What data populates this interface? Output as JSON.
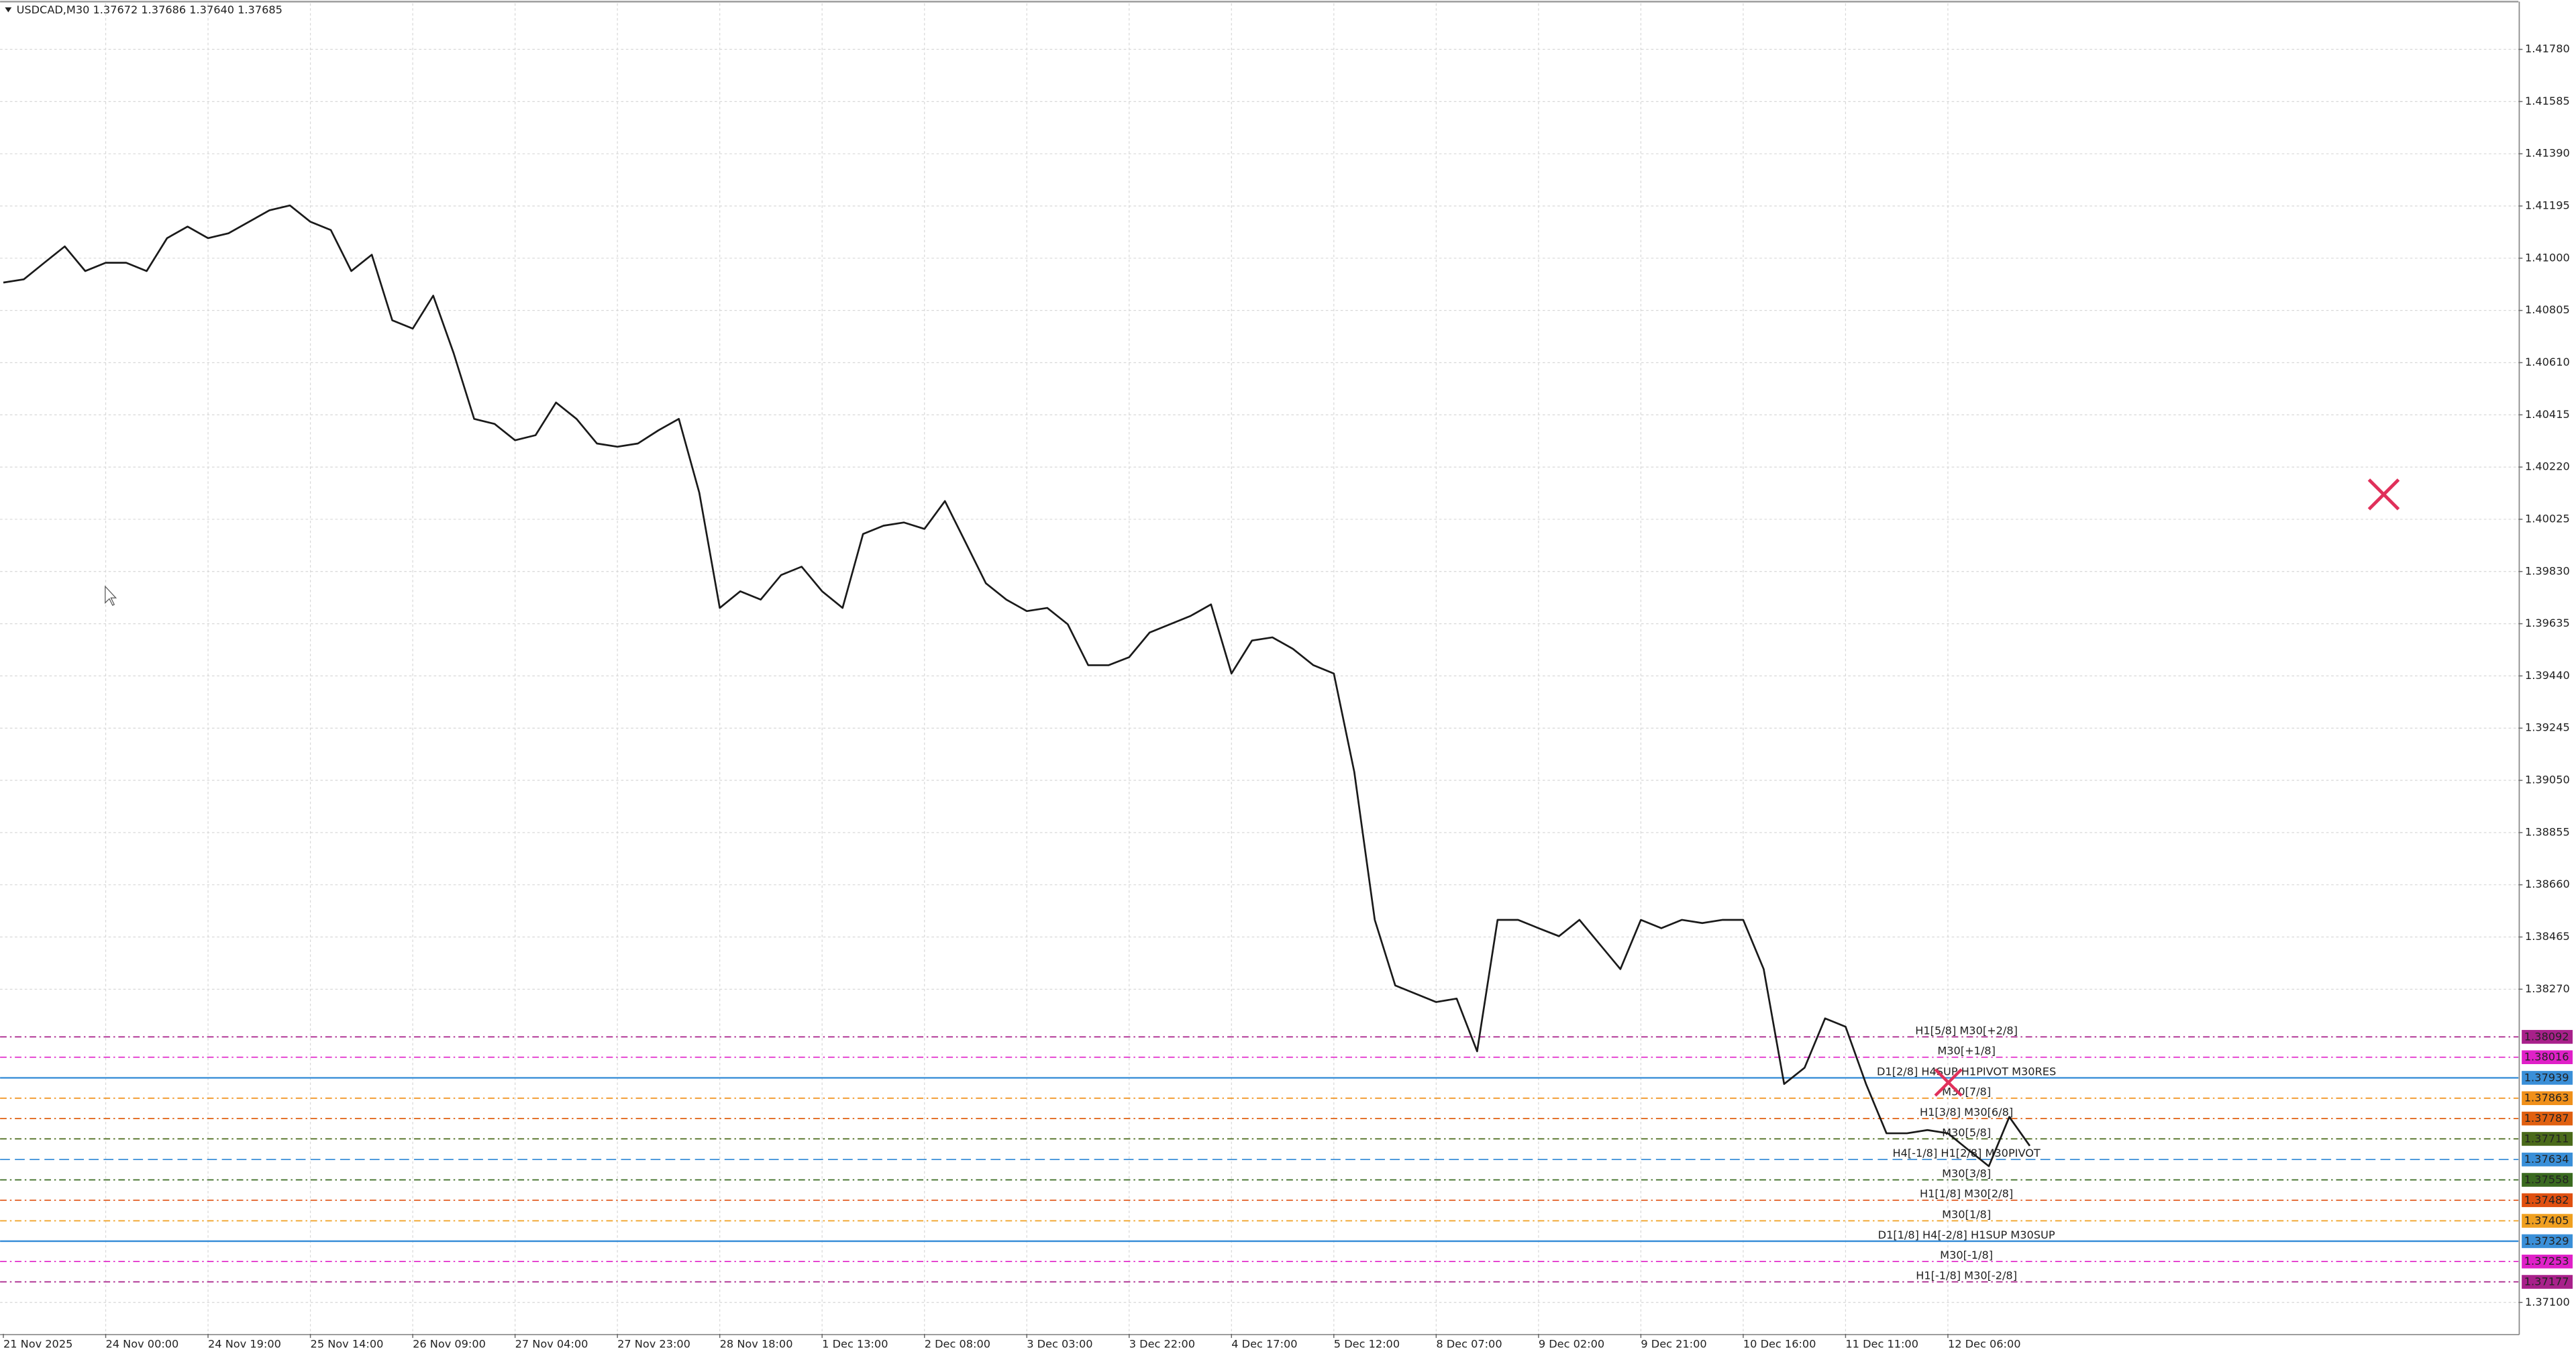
{
  "chart_data": {
    "type": "line",
    "title": "USDCAD,M30  1.37672 1.37686 1.37640 1.37685",
    "color": "#1a1a1a",
    "grid": true,
    "categories": [
      "21 Nov 2025",
      null,
      null,
      null,
      null,
      "24 Nov 00:00",
      null,
      null,
      null,
      null,
      "24 Nov 19:00",
      null,
      null,
      null,
      null,
      "25 Nov 14:00",
      null,
      null,
      null,
      null,
      "26 Nov 09:00",
      null,
      null,
      null,
      null,
      "27 Nov 04:00",
      null,
      null,
      null,
      null,
      "27 Nov 23:00",
      null,
      null,
      null,
      null,
      "28 Nov 18:00",
      null,
      null,
      null,
      null,
      "1 Dec 13:00",
      null,
      null,
      null,
      null,
      "2 Dec 08:00",
      null,
      null,
      null,
      null,
      "3 Dec 03:00",
      null,
      null,
      null,
      null,
      "3 Dec 22:00",
      null,
      null,
      null,
      null,
      "4 Dec 17:00",
      null,
      null,
      null,
      null,
      "5 Dec 12:00",
      null,
      null,
      null,
      null,
      "8 Dec 07:00",
      null,
      null,
      null,
      null,
      "9 Dec 02:00",
      null,
      null,
      null,
      null,
      "9 Dec 21:00",
      null,
      null,
      null,
      null,
      "10 Dec 16:00",
      null,
      null,
      null,
      null,
      "11 Dec 11:00",
      null,
      null,
      null,
      null,
      "12 Dec 06:00",
      null,
      null,
      null,
      null
    ],
    "values": [
      1.40909,
      1.40921,
      1.40983,
      1.41044,
      1.40952,
      1.40983,
      1.40983,
      1.40952,
      1.41075,
      1.41118,
      1.41075,
      1.41093,
      1.41136,
      1.41179,
      1.41197,
      1.41136,
      1.41105,
      1.40952,
      1.41013,
      1.40768,
      1.40737,
      1.4086,
      1.40645,
      1.404,
      1.40381,
      1.4032,
      1.40339,
      1.40461,
      1.404,
      1.40308,
      1.40296,
      1.40308,
      1.40357,
      1.404,
      1.40124,
      1.39694,
      1.39756,
      1.39725,
      1.39817,
      1.39848,
      1.39756,
      1.39694,
      1.3997,
      1.40001,
      1.40013,
      1.39989,
      1.40093,
      1.3994,
      1.39786,
      1.39725,
      1.39682,
      1.39694,
      1.39633,
      1.3948,
      1.3948,
      1.3951,
      1.39602,
      1.39633,
      1.39664,
      1.39707,
      1.39449,
      1.39572,
      1.39584,
      1.39541,
      1.3948,
      1.39449,
      1.39081,
      1.38529,
      1.38284,
      1.38253,
      1.38222,
      1.38235,
      1.38038,
      1.38529,
      1.38529,
      1.38498,
      1.38468,
      1.38529,
      1.38437,
      1.38345,
      1.38529,
      1.38498,
      1.38529,
      1.38517,
      1.38529,
      1.38529,
      1.38345,
      1.37916,
      1.37977,
      1.38161,
      1.3813,
      1.37916,
      1.37732,
      1.37732,
      1.37744,
      1.37732,
      1.3767,
      1.37609,
      1.37793,
      1.37685
    ],
    "ylim": [
      1.36983,
      1.41952
    ],
    "yticks": [
      {
        "value": 1.4178,
        "label": "1.41780"
      },
      1.41585,
      {
        "value": 1.4139,
        "label": "1.41390"
      },
      1.41195,
      {
        "value": 1.41,
        "label": "1.41000"
      },
      1.40805,
      {
        "value": 1.4061,
        "label": "1.40610"
      },
      1.40415,
      {
        "value": 1.4022,
        "label": "1.40220"
      },
      1.40025,
      {
        "value": 1.3983,
        "label": "1.39830"
      },
      1.39635,
      {
        "value": 1.3944,
        "label": "1.39440"
      },
      1.39245,
      {
        "value": 1.3905,
        "label": "1.39050"
      },
      1.38855,
      {
        "value": 1.3866,
        "label": "1.38660"
      },
      1.38465,
      {
        "value": 1.3827,
        "label": "1.38270"
      },
      {
        "value": 1.371,
        "label": "1.37100"
      }
    ],
    "levels": [
      {
        "value": 1.38092,
        "color": "#a8208a",
        "style": "dashdot",
        "text": "H1[5/8] M30[+2/8]"
      },
      {
        "value": 1.38016,
        "color": "#e020c8",
        "style": "dashdot",
        "text": "M30[+1/8]"
      },
      {
        "value": 1.37939,
        "color": "#3a8fd8",
        "style": "solid",
        "text": "D1[2/8] H4SUP H1PIVOT M30RES"
      },
      {
        "value": 1.37863,
        "color": "#f0901a",
        "style": "dashdot",
        "text": "M30[7/8]"
      },
      {
        "value": 1.37787,
        "color": "#e06010",
        "style": "dashdot",
        "text": "H1[3/8] M30[6/8]"
      },
      {
        "value": 1.37711,
        "color": "#4a6a1a",
        "style": "dashdot",
        "text": "M30[5/8]"
      },
      {
        "value": 1.37634,
        "color": "#3a8fd8",
        "style": "dashed",
        "text": "H4[-1/8] H1[2/8] M30PIVOT"
      },
      {
        "value": 1.37558,
        "color": "#3a6a20",
        "style": "dashdot",
        "text": "M30[3/8]"
      },
      {
        "value": 1.37482,
        "color": "#e05010",
        "style": "dashdot",
        "text": "H1[1/8] M30[2/8]"
      },
      {
        "value": 1.37405,
        "color": "#f0a020",
        "style": "dashdot",
        "text": "M30[1/8]"
      },
      {
        "value": 1.37329,
        "color": "#3a8fd8",
        "style": "solid",
        "text": "D1[1/8] H4[-2/8] H1SUP M30SUP"
      },
      {
        "value": 1.37253,
        "color": "#e020c8",
        "style": "dashdot",
        "text": "M30[-1/8]"
      },
      {
        "value": 1.37177,
        "color": "#a8208a",
        "style": "dashdot",
        "text": "H1[-1/8] M30[-2/8]"
      }
    ]
  }
}
